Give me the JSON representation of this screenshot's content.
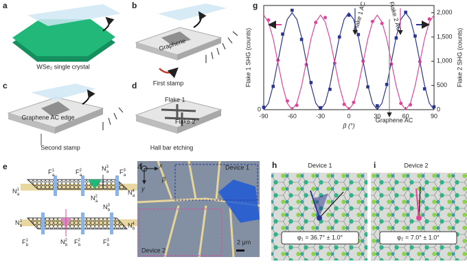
{
  "panels": {
    "a": {
      "label": "a",
      "caption": "WSe₂ single crystal"
    },
    "b": {
      "label": "b",
      "texts": [
        "Graphene",
        "First stamp"
      ]
    },
    "c": {
      "label": "c",
      "texts": [
        "Graphene AC edge",
        "Second stamp"
      ]
    },
    "d": {
      "label": "d",
      "texts": [
        "Flake 1",
        "Flake 2",
        "Hall bar etching"
      ]
    },
    "e": {
      "label": "e",
      "contacts": [
        {
          "sym": "F",
          "sub": "a",
          "sup": "1"
        },
        {
          "sym": "F",
          "sub": "a",
          "sup": "2"
        },
        {
          "sym": "N",
          "sub": "a",
          "sup": "3"
        },
        {
          "sym": "F",
          "sub": "a",
          "sup": "3"
        },
        {
          "sym": "N",
          "sub": "a",
          "sup": "1"
        },
        {
          "sym": "N",
          "sub": "a",
          "sup": "2"
        },
        {
          "sym": "N",
          "sub": "a",
          "sup": "4"
        },
        {
          "sym": "N",
          "sub": "b",
          "sup": "1"
        },
        {
          "sym": "N",
          "sub": "b",
          "sup": "2"
        },
        {
          "sym": "N",
          "sub": "b",
          "sup": "3"
        },
        {
          "sym": "N",
          "sub": "b",
          "sup": "4"
        },
        {
          "sym": "F",
          "sub": "b",
          "sup": "1"
        },
        {
          "sym": "F",
          "sub": "b",
          "sup": "2"
        },
        {
          "sym": "F",
          "sub": "b",
          "sup": "3"
        }
      ]
    },
    "f": {
      "label": "f",
      "texts": [
        "Device 1",
        "Device 2",
        "2 μm",
        "z",
        "x",
        "y",
        "β"
      ]
    },
    "g": {
      "label": "g"
    },
    "h": {
      "label": "h",
      "title": "Device 1",
      "angle": "φ₁ = 36.7° ± 1.0°"
    },
    "i": {
      "label": "i",
      "title": "Device 2",
      "angle": "φ₂ = 7.0° ± 1.0°"
    }
  },
  "chart_data": {
    "type": "scatter",
    "x_label": "β (°)",
    "y_label": "Flake 1 SHG (counts)",
    "y2_label": "Flake 2 SHG (counts)",
    "annotations": [
      "Flake 1 AC",
      "Flake 2 AC",
      "Graphene AC"
    ],
    "xlim": [
      -90,
      90
    ],
    "xticks": [
      -90,
      -60,
      -30,
      0,
      30,
      60,
      90
    ],
    "ylim": [
      0,
      2150
    ],
    "yticks": [
      0
    ],
    "y2lim": [
      0,
      2150
    ],
    "y2ticks": [
      0,
      500,
      {
        "value": 1000,
        "label": "1,000"
      },
      {
        "value": 1500,
        "label": "1,500"
      },
      {
        "value": 2000,
        "label": "2,000"
      }
    ],
    "series": [
      {
        "color": "#2b3590",
        "mode": "markers",
        "marker": "square",
        "axis": "y",
        "x": [
          -90,
          -80,
          -70,
          -60,
          -50,
          -40,
          -30,
          -20,
          -10,
          0,
          10,
          20,
          30,
          40,
          50,
          60,
          70,
          80,
          90
        ],
        "values": [
          50,
          480,
          1560,
          2050,
          1450,
          560,
          40,
          420,
          1500,
          1950,
          1550,
          470,
          80,
          520,
          1480,
          2010,
          1520,
          430,
          60
        ]
      },
      {
        "color": "#e2449b",
        "mode": "markers",
        "marker": "circle",
        "axis": "y2",
        "x": [
          -85,
          -75,
          -65,
          -55,
          -45,
          -35,
          -25,
          -15,
          -5,
          5,
          15,
          25,
          35,
          45,
          55,
          65,
          75,
          85
        ],
        "values": [
          1850,
          1020,
          180,
          90,
          930,
          1800,
          1900,
          960,
          110,
          150,
          1000,
          1820,
          1780,
          940,
          130,
          100,
          990,
          1870
        ]
      },
      {
        "color": "#2b3590",
        "mode": "line",
        "axis": "y",
        "x": [
          -90,
          -85,
          -80,
          -75,
          -70,
          -65,
          -60,
          -55,
          -50,
          -45,
          -40,
          -35,
          -30,
          -25,
          -20,
          -15,
          -10,
          -5,
          0,
          5,
          10,
          15,
          20,
          25,
          30,
          35,
          40,
          45,
          50,
          55,
          60,
          65,
          70,
          75,
          80,
          85,
          90
        ],
        "values": [
          0,
          134,
          500,
          1000,
          1500,
          1866,
          2000,
          1866,
          1500,
          1000,
          500,
          134,
          0,
          134,
          500,
          1000,
          1500,
          1866,
          2000,
          1866,
          1500,
          1000,
          500,
          134,
          0,
          134,
          500,
          1000,
          1500,
          1866,
          2000,
          1866,
          1500,
          1000,
          500,
          134,
          0
        ]
      },
      {
        "color": "#e2449b",
        "mode": "line",
        "axis": "y2",
        "x": [
          -90,
          -85,
          -80,
          -75,
          -70,
          -65,
          -60,
          -55,
          -50,
          -45,
          -40,
          -35,
          -30,
          -25,
          -20,
          -15,
          -10,
          -5,
          0,
          5,
          10,
          15,
          20,
          25,
          30,
          35,
          40,
          45,
          50,
          55,
          60,
          65,
          70,
          75,
          80,
          85,
          90
        ],
        "values": [
          1950,
          1806,
          1463,
          975,
          488,
          131,
          0,
          131,
          488,
          975,
          1463,
          1806,
          1950,
          1806,
          1463,
          975,
          488,
          131,
          0,
          131,
          488,
          975,
          1463,
          1806,
          1950,
          1806,
          1463,
          975,
          488,
          131,
          0,
          131,
          488,
          975,
          1463,
          1806,
          1950
        ]
      }
    ]
  }
}
